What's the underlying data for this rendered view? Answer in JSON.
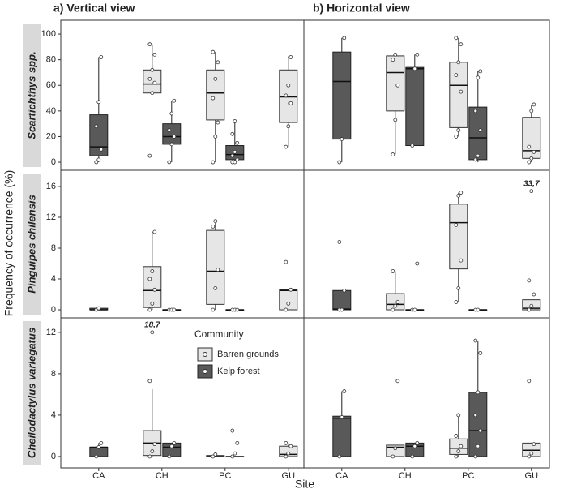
{
  "chart_data": {
    "type": "box",
    "column_titles": [
      "a) Vertical view",
      "b) Horizontal view"
    ],
    "xlabel": "Site",
    "ylabel": "Frequency of occurrence (%)",
    "categories": [
      "CA",
      "CH",
      "PC",
      "GU"
    ],
    "legend_title": "Community",
    "series": [
      {
        "name": "Barren grounds",
        "color": "#e6e6e6"
      },
      {
        "name": "Kelp forest",
        "color": "#595959"
      }
    ],
    "rows": [
      {
        "label": "Scartichthys spp.",
        "ylim": [
          -6.3,
          110.8
        ],
        "yticks": [
          0,
          20,
          40,
          60,
          80,
          100
        ],
        "panels": [
          {
            "series": [
              {
                "values": [
                  null,
                  {
                    "min": 54,
                    "q1": 54,
                    "median": 61,
                    "q3": 72,
                    "max": 92,
                    "points": [
                      5,
                      54,
                      62,
                      65,
                      72,
                      84,
                      92
                    ]
                  },
                  {
                    "min": 0,
                    "q1": 33,
                    "median": 54,
                    "q3": 72,
                    "max": 86,
                    "points": [
                      0,
                      20,
                      31,
                      50,
                      65,
                      78,
                      86
                    ]
                  },
                  {
                    "min": 12,
                    "q1": 31,
                    "median": 51,
                    "q3": 72,
                    "max": 82,
                    "points": [
                      12,
                      28,
                      46,
                      52,
                      60,
                      82
                    ]
                  }
                ]
              },
              {
                "values": [
                  {
                    "min": 0,
                    "q1": 5,
                    "median": 12,
                    "q3": 37,
                    "max": 82,
                    "points": [
                      0,
                      2,
                      10,
                      28,
                      47,
                      82
                    ]
                  },
                  {
                    "min": 0,
                    "q1": 14,
                    "median": 20,
                    "q3": 30,
                    "max": 48,
                    "points": [
                      0,
                      14,
                      20,
                      25,
                      38,
                      48
                    ]
                  },
                  {
                    "min": 0,
                    "q1": 2,
                    "median": 6,
                    "q3": 13,
                    "max": 32,
                    "points": [
                      0,
                      0,
                      2,
                      5,
                      8,
                      15,
                      22,
                      32
                    ]
                  },
                  null
                ]
              }
            ]
          },
          {
            "series": [
              {
                "values": [
                  null,
                  {
                    "min": 6,
                    "q1": 40,
                    "median": 70,
                    "q3": 83,
                    "max": 84,
                    "points": [
                      6,
                      33,
                      60,
                      80,
                      84
                    ]
                  },
                  {
                    "min": 20,
                    "q1": 27,
                    "median": 60,
                    "q3": 78,
                    "max": 97,
                    "points": [
                      20,
                      25,
                      55,
                      68,
                      78,
                      92,
                      97
                    ]
                  },
                  {
                    "min": 0,
                    "q1": 3,
                    "median": 9,
                    "q3": 35,
                    "max": 45,
                    "points": [
                      0,
                      3,
                      8,
                      12,
                      40,
                      45
                    ]
                  }
                ]
              },
              {
                "values": [
                  {
                    "min": 0,
                    "q1": 18,
                    "median": 63,
                    "q3": 86,
                    "max": 97,
                    "points": [
                      0,
                      18,
                      97
                    ]
                  },
                  {
                    "min": 13,
                    "q1": 13,
                    "median": 73,
                    "q3": 74,
                    "max": 84,
                    "points": [
                      13,
                      73,
                      84
                    ]
                  },
                  {
                    "min": 0,
                    "q1": 2,
                    "median": 19,
                    "q3": 43,
                    "max": 71,
                    "points": [
                      2,
                      5,
                      25,
                      40,
                      66,
                      71
                    ]
                  },
                  null
                ]
              }
            ]
          }
        ]
      },
      {
        "label": "Pinguipes chilensis",
        "ylim": [
          -1.05,
          18.1
        ],
        "yticks": [
          0,
          4,
          8,
          12,
          16
        ],
        "panels": [
          {
            "series": [
              {
                "values": [
                  null,
                  {
                    "min": 0,
                    "q1": 0.3,
                    "median": 2.5,
                    "q3": 5.6,
                    "max": 10.1,
                    "points": [
                      0,
                      0.8,
                      2.6,
                      4,
                      5,
                      10.1
                    ]
                  },
                  {
                    "min": 0,
                    "q1": 0.7,
                    "median": 5,
                    "q3": 10.3,
                    "max": 11.5,
                    "points": [
                      0,
                      2.8,
                      5.2,
                      10.8,
                      11.5
                    ]
                  },
                  {
                    "min": 0,
                    "q1": 0,
                    "median": 2.5,
                    "q3": 2.6,
                    "max": 2.6,
                    "points": [
                      0,
                      0.8,
                      2.6,
                      6.2
                    ]
                  }
                ]
              },
              {
                "values": [
                  {
                    "min": 0,
                    "q1": 0,
                    "median": 0,
                    "q3": 0.2,
                    "max": 0.3,
                    "points": [
                      0,
                      0.2
                    ]
                  },
                  {
                    "min": 0,
                    "q1": 0,
                    "median": 0,
                    "q3": 0,
                    "max": 0,
                    "points": [
                      0,
                      0,
                      0
                    ]
                  },
                  {
                    "min": 0,
                    "q1": 0,
                    "median": 0,
                    "q3": 0,
                    "max": 0,
                    "points": [
                      0,
                      0,
                      0
                    ]
                  },
                  null
                ]
              }
            ]
          },
          {
            "series": [
              {
                "values": [
                  null,
                  {
                    "min": 0,
                    "q1": 0,
                    "median": 0.7,
                    "q3": 2.1,
                    "max": 5,
                    "points": [
                      0,
                      0.5,
                      1,
                      5
                    ]
                  },
                  {
                    "min": 1,
                    "q1": 5.3,
                    "median": 11.3,
                    "q3": 13.7,
                    "max": 15.2,
                    "points": [
                      1,
                      2.8,
                      6.4,
                      11,
                      14.8,
                      15.2
                    ]
                  },
                  {
                    "min": 0,
                    "q1": 0,
                    "median": 0.2,
                    "q3": 1.3,
                    "max": 1.3,
                    "points": [
                      0,
                      0.5,
                      2,
                      3.8,
                      15.4
                    ],
                    "annotation": "33,7"
                  }
                ]
              },
              {
                "values": [
                  {
                    "min": 0,
                    "q1": 0,
                    "median": 0.1,
                    "q3": 2.5,
                    "max": 2.5,
                    "points": [
                      0,
                      0,
                      2.5,
                      8.8
                    ]
                  },
                  {
                    "min": 0,
                    "q1": 0,
                    "median": 0,
                    "q3": 0,
                    "max": 0,
                    "points": [
                      0,
                      0,
                      6
                    ]
                  },
                  {
                    "min": 0,
                    "q1": 0,
                    "median": 0,
                    "q3": 0,
                    "max": 0,
                    "points": [
                      0,
                      0
                    ]
                  },
                  null
                ]
              }
            ]
          }
        ]
      },
      {
        "label": "Cheilodactylus variegatus",
        "ylim": [
          -1.1,
          13.4
        ],
        "yticks": [
          0,
          4,
          8,
          12
        ],
        "panels": [
          {
            "series": [
              {
                "values": [
                  null,
                  {
                    "min": 0,
                    "q1": 0.1,
                    "median": 1.3,
                    "q3": 2.5,
                    "max": 6.5,
                    "points": [
                      0,
                      0.5,
                      1.2,
                      7.3,
                      12
                    ],
                    "annotation": "18,7"
                  },
                  {
                    "min": 0,
                    "q1": 0,
                    "median": 0,
                    "q3": 0.1,
                    "max": 0.1,
                    "points": [
                      0,
                      0.2
                    ]
                  },
                  {
                    "min": 0,
                    "q1": 0,
                    "median": 0.2,
                    "q3": 1,
                    "max": 1.3,
                    "points": [
                      0,
                      0.3,
                      1,
                      1.3
                    ]
                  }
                ]
              },
              {
                "values": [
                  {
                    "min": 0,
                    "q1": 0,
                    "median": 0.9,
                    "q3": 0.9,
                    "max": 1.3,
                    "points": [
                      0,
                      0.9,
                      1.3
                    ]
                  },
                  {
                    "min": 0,
                    "q1": 0,
                    "median": 0.9,
                    "q3": 1.3,
                    "max": 1.3,
                    "points": [
                      0,
                      1,
                      1.3
                    ]
                  },
                  {
                    "min": 0,
                    "q1": 0,
                    "median": 0,
                    "q3": 0,
                    "max": 0,
                    "points": [
                      0,
                      0.3,
                      1.3,
                      2.5
                    ]
                  },
                  null
                ]
              }
            ]
          },
          {
            "series": [
              {
                "values": [
                  null,
                  {
                    "min": 0,
                    "q1": 0,
                    "median": 0.9,
                    "q3": 1.1,
                    "max": 1.1,
                    "points": [
                      0,
                      0.8,
                      7.3
                    ]
                  },
                  {
                    "min": 0,
                    "q1": 0.2,
                    "median": 0.8,
                    "q3": 1.7,
                    "max": 4,
                    "points": [
                      0,
                      0.5,
                      1,
                      2,
                      4
                    ]
                  },
                  {
                    "min": 0,
                    "q1": 0,
                    "median": 0.6,
                    "q3": 1.3,
                    "max": 1.3,
                    "points": [
                      0,
                      0.3,
                      1.2,
                      7.3
                    ]
                  }
                ]
              },
              {
                "values": [
                  {
                    "min": 0,
                    "q1": 0,
                    "median": 3.7,
                    "q3": 3.9,
                    "max": 6.3,
                    "points": [
                      0,
                      3.8,
                      6.3
                    ]
                  },
                  {
                    "min": 0,
                    "q1": 0,
                    "median": 1,
                    "q3": 1.3,
                    "max": 1.3,
                    "points": [
                      0,
                      1,
                      1.3
                    ]
                  },
                  {
                    "min": 0,
                    "q1": 0,
                    "median": 2.5,
                    "q3": 6.2,
                    "max": 11.2,
                    "points": [
                      0,
                      1,
                      2.5,
                      4,
                      6.2,
                      10,
                      11.2
                    ]
                  },
                  null
                ]
              }
            ]
          }
        ]
      }
    ]
  }
}
